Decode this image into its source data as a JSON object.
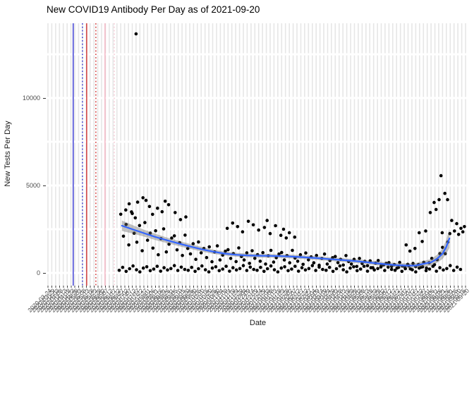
{
  "title": "New COVID19 Antibody Per Day as of 2021-09-20",
  "chart_data": {
    "type": "scatter",
    "title": "New COVID19 Antibody Per Day as of 2021-09-20",
    "xlabel": "Date",
    "ylabel": "New Tests Per Day",
    "legend": "none",
    "grid": "vertical-per-date",
    "ylim": [
      0,
      14270
    ],
    "y_major_ticks": [
      0,
      5000,
      10000
    ],
    "y_minor_gridlines": [
      0,
      2500,
      5000,
      7500,
      10000,
      12500
    ],
    "colors": {
      "point": "#000000",
      "smooth_line": "#3366ff",
      "ribbon": "rgba(110,110,110,0.42)",
      "grid": "#e6e6e6",
      "axis_text": "#4d4d4d",
      "vline_blue": "#2424cc",
      "vline_red": "#cc1f1f",
      "vline_pink": "#f4aabb",
      "vline_pink_light": "#f6c2cf"
    },
    "vlines": [
      {
        "x": 6.6,
        "color": "#2424cc",
        "style": "solid"
      },
      {
        "x": 9.0,
        "color": "#2424cc",
        "style": "dotted"
      },
      {
        "x": 10.1,
        "color": "#cc1f1f",
        "style": "solid"
      },
      {
        "x": 12.5,
        "color": "#cc1f1f",
        "style": "dotted"
      },
      {
        "x": 14.9,
        "color": "#f4aabb",
        "style": "solid"
      },
      {
        "x": 17.3,
        "color": "#f6c2cf",
        "style": "dotted"
      }
    ],
    "x_labels": [
      "2020-03-24",
      "2020-03-29",
      "2020-04-03",
      "2020-04-08",
      "2020-04-13",
      "2020-04-18",
      "2020-04-23",
      "2020-04-28",
      "2020-05-03",
      "2020-05-08",
      "2020-05-13",
      "2020-05-18",
      "2020-05-23",
      "2020-05-28",
      "2020-06-02",
      "2020-06-07",
      "2020-06-12",
      "2020-06-17",
      "2020-06-22",
      "2020-06-27",
      "2020-07-02",
      "2020-07-07",
      "2020-07-12",
      "2020-07-17",
      "2020-07-22",
      "2020-07-27",
      "2020-08-01",
      "2020-08-06",
      "2020-08-11",
      "2020-08-16",
      "2020-08-21",
      "2020-08-26",
      "2020-08-31",
      "2020-09-05",
      "2020-09-10",
      "2020-09-15",
      "2020-09-20",
      "2020-09-25",
      "2020-09-30",
      "2020-10-05",
      "2020-10-10",
      "2020-10-15",
      "2020-10-20",
      "2020-10-25",
      "2020-10-30",
      "2020-11-04",
      "2020-11-09",
      "2020-11-14",
      "2020-11-19",
      "2020-11-24",
      "2020-11-29",
      "2020-12-04",
      "2020-12-09",
      "2020-12-14",
      "2020-12-19",
      "2020-12-24",
      "2020-12-29",
      "2021-01-03",
      "2021-01-08",
      "2021-01-13",
      "2021-01-18",
      "2021-01-23",
      "2021-01-28",
      "2021-02-02",
      "2021-02-07",
      "2021-02-12",
      "2021-02-17",
      "2021-02-22",
      "2021-02-27",
      "2021-03-04",
      "2021-03-09",
      "2021-03-14",
      "2021-03-19",
      "2021-03-24",
      "2021-03-29",
      "2021-04-03",
      "2021-04-08",
      "2021-04-13",
      "2021-04-18",
      "2021-04-23",
      "2021-04-28",
      "2021-05-03",
      "2021-05-08",
      "2021-05-13",
      "2021-05-18",
      "2021-05-23",
      "2021-05-28",
      "2021-06-02",
      "2021-06-07",
      "2021-06-12",
      "2021-06-17",
      "2021-06-22",
      "2021-06-27",
      "2021-07-02",
      "2021-07-07",
      "2021-07-12",
      "2021-07-17",
      "2021-07-22",
      "2021-07-27",
      "2021-08-01",
      "2021-08-06",
      "2021-08-11",
      "2021-08-16",
      "2021-08-21",
      "2021-08-26",
      "2021-08-31",
      "2021-09-05",
      "2021-09-10",
      "2021-09-15",
      "2021-09-20"
    ],
    "smooth": [
      [
        19.3,
        2700,
        300
      ],
      [
        22,
        2500,
        240
      ],
      [
        25,
        2280,
        200
      ],
      [
        28,
        2060,
        180
      ],
      [
        31,
        1870,
        160
      ],
      [
        34,
        1690,
        150
      ],
      [
        37,
        1520,
        140
      ],
      [
        40,
        1360,
        130
      ],
      [
        43,
        1220,
        120
      ],
      [
        46,
        1110,
        115
      ],
      [
        49,
        1040,
        110
      ],
      [
        52,
        1000,
        108
      ],
      [
        55,
        985,
        105
      ],
      [
        58,
        975,
        105
      ],
      [
        61,
        958,
        105
      ],
      [
        64,
        930,
        105
      ],
      [
        67,
        893,
        105
      ],
      [
        70,
        850,
        105
      ],
      [
        73,
        800,
        105
      ],
      [
        76,
        750,
        105
      ],
      [
        79,
        700,
        105
      ],
      [
        82,
        640,
        108
      ],
      [
        85,
        570,
        110
      ],
      [
        88,
        500,
        115
      ],
      [
        91,
        445,
        120
      ],
      [
        94,
        420,
        130
      ],
      [
        96,
        425,
        140
      ],
      [
        98,
        520,
        160
      ],
      [
        100,
        610,
        190
      ],
      [
        101.5,
        800,
        230
      ],
      [
        103,
        1100,
        300
      ],
      [
        104,
        1500,
        400
      ],
      [
        104.8,
        1976,
        550
      ]
    ],
    "points": [
      [
        18.6,
        150
      ],
      [
        19.5,
        320
      ],
      [
        20.4,
        90
      ],
      [
        21.3,
        240
      ],
      [
        22.2,
        400
      ],
      [
        23.1,
        180
      ],
      [
        24,
        60
      ],
      [
        24.9,
        280
      ],
      [
        25.8,
        350
      ],
      [
        26.7,
        130
      ],
      [
        27.6,
        220
      ],
      [
        28.5,
        380
      ],
      [
        29.4,
        100
      ],
      [
        30.3,
        300
      ],
      [
        31.2,
        170
      ],
      [
        32.1,
        250
      ],
      [
        33,
        420
      ],
      [
        33.9,
        140
      ],
      [
        34.8,
        330
      ],
      [
        35.7,
        200
      ],
      [
        36.6,
        150
      ],
      [
        37.5,
        320
      ],
      [
        38.4,
        90
      ],
      [
        39.3,
        240
      ],
      [
        40.2,
        400
      ],
      [
        41.1,
        180
      ],
      [
        42,
        60
      ],
      [
        42.9,
        280
      ],
      [
        43.8,
        350
      ],
      [
        44.7,
        130
      ],
      [
        45.6,
        220
      ],
      [
        46.5,
        380
      ],
      [
        47.4,
        100
      ],
      [
        48.3,
        300
      ],
      [
        49.2,
        170
      ],
      [
        50.1,
        250
      ],
      [
        51,
        420
      ],
      [
        51.9,
        140
      ],
      [
        52.8,
        330
      ],
      [
        53.7,
        200
      ],
      [
        54.6,
        150
      ],
      [
        55.5,
        320
      ],
      [
        56.4,
        90
      ],
      [
        57.3,
        240
      ],
      [
        58.2,
        400
      ],
      [
        59.1,
        180
      ],
      [
        60,
        60
      ],
      [
        60.9,
        280
      ],
      [
        61.8,
        350
      ],
      [
        62.7,
        130
      ],
      [
        63.6,
        220
      ],
      [
        64.5,
        380
      ],
      [
        65.4,
        100
      ],
      [
        66.3,
        300
      ],
      [
        67.2,
        170
      ],
      [
        68.1,
        250
      ],
      [
        69,
        420
      ],
      [
        69.9,
        140
      ],
      [
        70.8,
        330
      ],
      [
        71.7,
        200
      ],
      [
        72.6,
        150
      ],
      [
        73.5,
        320
      ],
      [
        74.4,
        90
      ],
      [
        75.3,
        240
      ],
      [
        76.2,
        400
      ],
      [
        77.1,
        180
      ],
      [
        78,
        60
      ],
      [
        78.9,
        280
      ],
      [
        79.8,
        350
      ],
      [
        80.7,
        130
      ],
      [
        81.6,
        220
      ],
      [
        82.5,
        380
      ],
      [
        83.4,
        100
      ],
      [
        84.3,
        300
      ],
      [
        85.2,
        170
      ],
      [
        86.1,
        250
      ],
      [
        87,
        420
      ],
      [
        87.9,
        140
      ],
      [
        88.8,
        330
      ],
      [
        89.7,
        200
      ],
      [
        90.6,
        150
      ],
      [
        91.5,
        320
      ],
      [
        92.4,
        90
      ],
      [
        93.3,
        240
      ],
      [
        94.2,
        400
      ],
      [
        95.1,
        180
      ],
      [
        96,
        60
      ],
      [
        96.9,
        280
      ],
      [
        97.8,
        350
      ],
      [
        98.7,
        130
      ],
      [
        99.6,
        220
      ],
      [
        100.5,
        380
      ],
      [
        101.4,
        100
      ],
      [
        102.3,
        300
      ],
      [
        103.2,
        170
      ],
      [
        104.1,
        250
      ],
      [
        105,
        420
      ],
      [
        105.9,
        140
      ],
      [
        106.8,
        330
      ],
      [
        107.7,
        200
      ],
      [
        19,
        3355
      ],
      [
        19.7,
        2100
      ],
      [
        20.4,
        2770
      ],
      [
        21.1,
        1600
      ],
      [
        21.8,
        3490
      ],
      [
        22.5,
        2270
      ],
      [
        23.2,
        1760
      ],
      [
        23.9,
        2710
      ],
      [
        24.6,
        1270
      ],
      [
        25.3,
        2880
      ],
      [
        26,
        1870
      ],
      [
        26.7,
        2280
      ],
      [
        27.4,
        1420
      ],
      [
        28.1,
        2410
      ],
      [
        28.8,
        1040
      ],
      [
        29.5,
        1960
      ],
      [
        30.2,
        2520
      ],
      [
        30.9,
        1200
      ],
      [
        31.6,
        1640
      ],
      [
        32.3,
        1990
      ],
      [
        33,
        2120
      ],
      [
        33.7,
        1320
      ],
      [
        34.4,
        1730
      ],
      [
        35.1,
        1000
      ],
      [
        35.8,
        2160
      ],
      [
        36.5,
        1400
      ],
      [
        37.2,
        1090
      ],
      [
        37.9,
        1670
      ],
      [
        38.6,
        780
      ],
      [
        39.3,
        1770
      ],
      [
        40,
        1150
      ],
      [
        40.7,
        1400
      ],
      [
        41.4,
        880
      ],
      [
        42.1,
        1490
      ],
      [
        42.8,
        640
      ],
      [
        43.5,
        1200
      ],
      [
        44.2,
        1550
      ],
      [
        44.9,
        740
      ],
      [
        45.6,
        1020
      ],
      [
        46.3,
        1240
      ],
      [
        47,
        1330
      ],
      [
        47.7,
        830
      ],
      [
        48.4,
        1110
      ],
      [
        49.1,
        650
      ],
      [
        49.8,
        1430
      ],
      [
        50.5,
        940
      ],
      [
        51.2,
        740
      ],
      [
        51.9,
        1150
      ],
      [
        52.6,
        550
      ],
      [
        53.3,
        1270
      ],
      [
        54,
        840
      ],
      [
        54.7,
        1050
      ],
      [
        55.4,
        670
      ],
      [
        56.1,
        1160
      ],
      [
        56.8,
        510
      ],
      [
        57.5,
        980
      ],
      [
        58.2,
        1290
      ],
      [
        58.9,
        620
      ],
      [
        59.6,
        870
      ],
      [
        60.3,
        1080
      ],
      [
        61,
        1170
      ],
      [
        61.7,
        740
      ],
      [
        62.4,
        990
      ],
      [
        63.1,
        580
      ],
      [
        63.8,
        1290
      ],
      [
        64.5,
        850
      ],
      [
        65.2,
        670
      ],
      [
        65.9,
        1040
      ],
      [
        66.6,
        490
      ],
      [
        67.3,
        1140
      ],
      [
        68,
        750
      ],
      [
        68.7,
        920
      ],
      [
        69.4,
        580
      ],
      [
        70.1,
        1000
      ],
      [
        70.8,
        440
      ],
      [
        71.5,
        830
      ],
      [
        72.2,
        1080
      ],
      [
        72.9,
        510
      ],
      [
        73.6,
        710
      ],
      [
        74.3,
        870
      ],
      [
        75,
        940
      ],
      [
        75.7,
        590
      ],
      [
        76.4,
        780
      ],
      [
        77.1,
        450
      ],
      [
        77.8,
        990
      ],
      [
        78.5,
        650
      ],
      [
        79.2,
        510
      ],
      [
        79.9,
        780
      ],
      [
        80.6,
        370
      ],
      [
        81.3,
        830
      ],
      [
        82,
        540
      ],
      [
        82.7,
        660
      ],
      [
        83.4,
        410
      ],
      [
        84.1,
        690
      ],
      [
        84.8,
        300
      ],
      [
        85.5,
        560
      ],
      [
        86.2,
        710
      ],
      [
        86.9,
        340
      ],
      [
        87.6,
        460
      ],
      [
        88.3,
        550
      ],
      [
        89,
        590
      ],
      [
        89.7,
        370
      ],
      [
        90.4,
        480
      ],
      [
        91.1,
        280
      ],
      [
        91.8,
        600
      ],
      [
        92.5,
        390
      ],
      [
        93.2,
        310
      ],
      [
        93.9,
        490
      ],
      [
        94.6,
        230
      ],
      [
        95.3,
        540
      ],
      [
        96,
        360
      ],
      [
        96.7,
        480
      ],
      [
        97.4,
        330
      ],
      [
        98.1,
        610
      ],
      [
        98.8,
        280
      ],
      [
        99.5,
        580
      ],
      [
        100.2,
        830
      ],
      [
        100.9,
        470
      ],
      [
        101.6,
        760
      ],
      [
        102.3,
        1110
      ],
      [
        103,
        1460
      ],
      [
        103.7,
        1100
      ],
      [
        104.4,
        1770
      ],
      [
        20.3,
        3600
      ],
      [
        21.2,
        3950
      ],
      [
        22,
        3400
      ],
      [
        22.8,
        3150
      ],
      [
        23.4,
        4050
      ],
      [
        24.8,
        4300
      ],
      [
        25.6,
        4150
      ],
      [
        26.5,
        3800
      ],
      [
        27.3,
        3350
      ],
      [
        28.6,
        3700
      ],
      [
        29.8,
        3500
      ],
      [
        30.6,
        4100
      ],
      [
        31.5,
        3900
      ],
      [
        33.2,
        3450
      ],
      [
        34.6,
        3050
      ],
      [
        36,
        3200
      ],
      [
        46.8,
        2550
      ],
      [
        48.2,
        2850
      ],
      [
        49.5,
        2650
      ],
      [
        50.8,
        2350
      ],
      [
        52.3,
        2950
      ],
      [
        53.6,
        2750
      ],
      [
        55,
        2450
      ],
      [
        56.5,
        2600
      ],
      [
        57.2,
        3000
      ],
      [
        58,
        2250
      ],
      [
        59.4,
        2700
      ],
      [
        60.8,
        2150
      ],
      [
        61.5,
        2500
      ],
      [
        62.2,
        2000
      ],
      [
        63,
        2300
      ],
      [
        64.4,
        2050
      ],
      [
        93.5,
        1600
      ],
      [
        94.5,
        1250
      ],
      [
        95.8,
        1400
      ],
      [
        96.9,
        2300
      ],
      [
        97.7,
        1800
      ],
      [
        98.6,
        2400
      ],
      [
        99.8,
        3450
      ],
      [
        100.8,
        4030
      ],
      [
        101.3,
        3630
      ],
      [
        102.1,
        4190
      ],
      [
        102.6,
        5560
      ],
      [
        102.9,
        2300
      ],
      [
        103.6,
        4550
      ],
      [
        104.3,
        4190
      ],
      [
        104.9,
        2250
      ],
      [
        105.4,
        3000
      ],
      [
        106.1,
        2400
      ],
      [
        106.7,
        2820
      ],
      [
        107.2,
        2200
      ],
      [
        107.8,
        2550
      ],
      [
        108.3,
        2350
      ],
      [
        108.7,
        2650
      ],
      [
        23,
        13670
      ]
    ]
  }
}
